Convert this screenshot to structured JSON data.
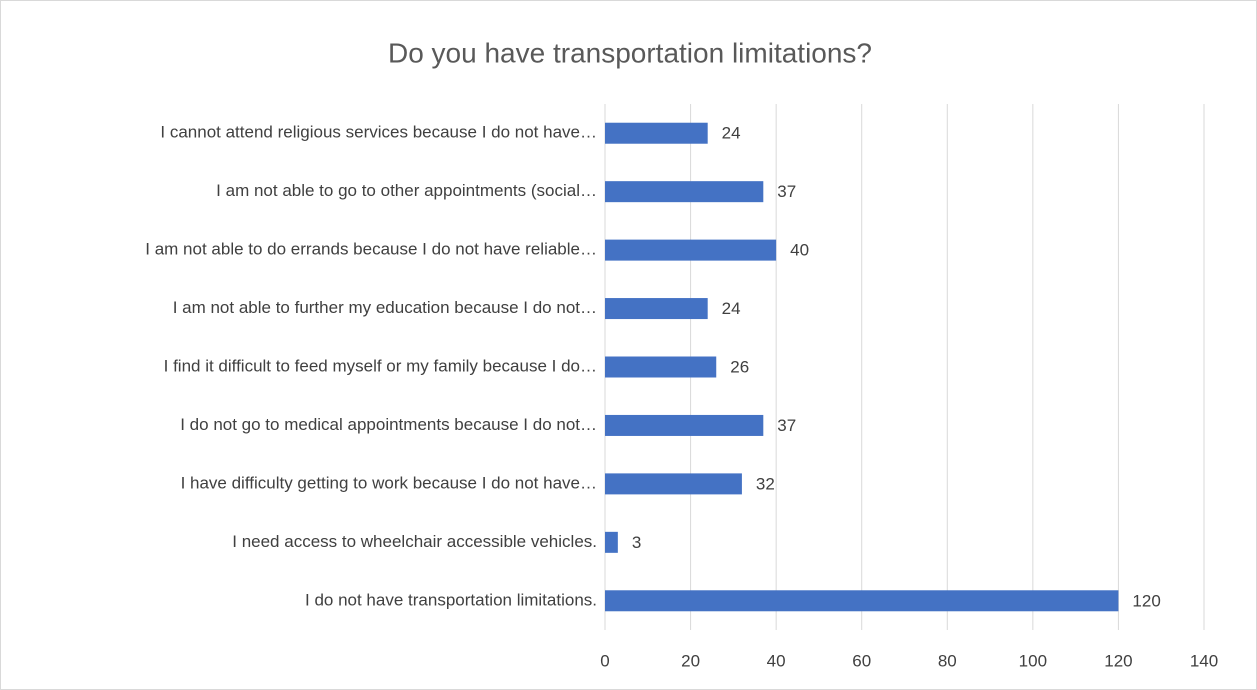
{
  "chart_data": {
    "type": "bar",
    "orientation": "horizontal",
    "title": "Do you have transportation limitations?",
    "categories": [
      "I cannot attend religious services because I do not have…",
      "I am not able to go to other appointments (social…",
      "I am not able to do errands because I do not have reliable…",
      "I am not able to further my education because I do not…",
      "I find it difficult to feed myself or my family because I do…",
      "I do not go to medical appointments because I do not…",
      "I have difficulty getting to work because I do not have…",
      "I need access to wheelchair accessible vehicles.",
      "I do not have transportation limitations."
    ],
    "values": [
      24,
      37,
      40,
      24,
      26,
      37,
      32,
      3,
      120
    ],
    "color": "#4472c4",
    "xlim": [
      0,
      140
    ],
    "xticks": [
      0,
      20,
      40,
      60,
      80,
      100,
      120,
      140
    ],
    "grid": true
  }
}
